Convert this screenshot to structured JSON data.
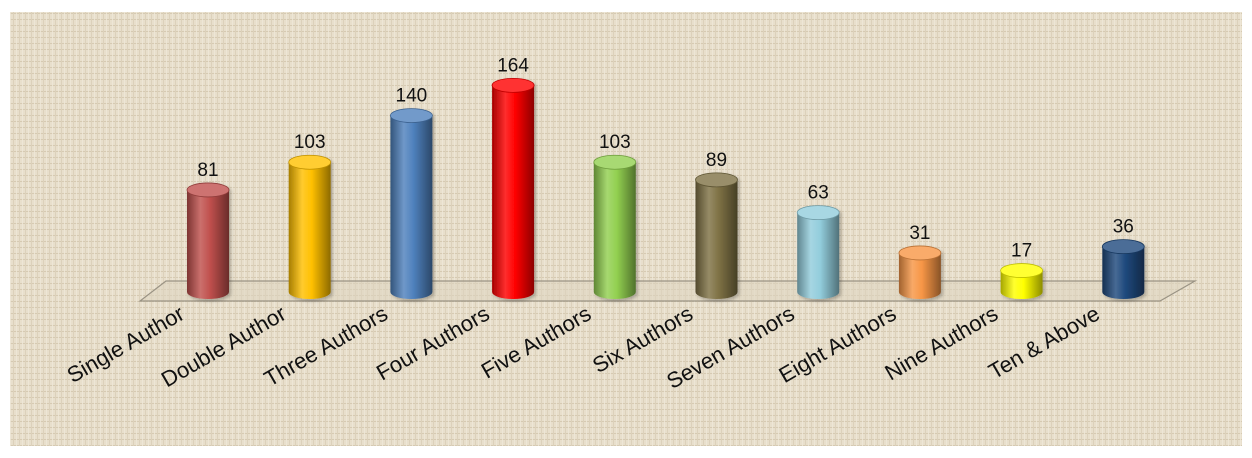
{
  "chart_data": {
    "type": "bar",
    "title": "",
    "xlabel": "",
    "ylabel": "",
    "categories": [
      "Single Author",
      "Double Author",
      "Three Authors",
      "Four Authors",
      "Five Authors",
      "Six Authors",
      "Seven Authors",
      "Eight Authors",
      "Nine Authors",
      "Ten & Above"
    ],
    "values": [
      81,
      103,
      140,
      164,
      103,
      89,
      63,
      31,
      17,
      36
    ],
    "colors": [
      "#c0504d",
      "#ffc000",
      "#4f81bd",
      "#ff0000",
      "#92d050",
      "#7f7245",
      "#92cddc",
      "#f79646",
      "#ffff00",
      "#1f497d"
    ],
    "grid": false,
    "legend": "none",
    "data_labels": true
  }
}
